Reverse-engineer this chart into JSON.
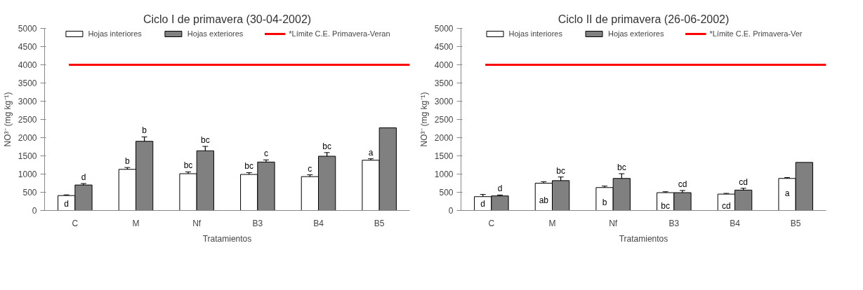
{
  "chart_data": [
    {
      "type": "bar",
      "title": "Ciclo I de primavera (30-04-2002)",
      "xlabel": "Tratamientos",
      "ylabel": "NO³⁻ (mg kg⁻¹)",
      "categories": [
        "C",
        "M",
        "Nf",
        "B3",
        "B4",
        "B5"
      ],
      "ylim": [
        0,
        5000
      ],
      "yticks": [
        0,
        500,
        1000,
        1500,
        2000,
        2500,
        3000,
        3500,
        4000,
        4500,
        5000
      ],
      "grid": false,
      "legend": "top",
      "series": [
        {
          "name": "Hojas interiores",
          "color": "#ffffff",
          "values": [
            410,
            1130,
            1010,
            990,
            930,
            1380
          ],
          "errors": [
            20,
            50,
            50,
            50,
            50,
            40
          ]
        },
        {
          "name": "Hojas exteriores",
          "color": "#808080",
          "values": [
            700,
            1900,
            1640,
            1330,
            1490,
            2270
          ],
          "errors": [
            40,
            120,
            120,
            60,
            100,
            null
          ]
        }
      ],
      "ref_lines": [
        {
          "axis": "y",
          "value": 4000,
          "label": "*Límite C.E. Primavera-Veran",
          "color": "#ff0000"
        }
      ],
      "annotations": [
        {
          "text": "d",
          "x": "C",
          "y": 180
        },
        {
          "text": "d",
          "x": "C",
          "y": 700
        },
        {
          "text": "b",
          "x": "M",
          "y": 1130
        },
        {
          "text": "b",
          "x": "M",
          "y": 1900
        },
        {
          "text": "bc",
          "x": "Nf",
          "y": 1010
        },
        {
          "text": "bc",
          "x": "Nf",
          "y": 1640
        },
        {
          "text": "bc",
          "x": "B3",
          "y": 990
        },
        {
          "text": "c",
          "x": "B3",
          "y": 1330
        },
        {
          "text": "c",
          "x": "B4",
          "y": 930
        },
        {
          "text": "bc",
          "x": "B4",
          "y": 1490
        },
        {
          "text": "a",
          "x": "B5",
          "y": 1380
        }
      ]
    },
    {
      "type": "bar",
      "title": "Ciclo II de primavera (26-06-2002)",
      "xlabel": "Tratamientos",
      "ylabel": "NO³⁻ (mg kg⁻¹)",
      "categories": [
        "C",
        "M",
        "Nf",
        "B3",
        "B4",
        "B5"
      ],
      "ylim": [
        0,
        5000
      ],
      "yticks": [
        0,
        500,
        1000,
        1500,
        2000,
        2500,
        3000,
        3500,
        4000,
        4500,
        5000
      ],
      "grid": false,
      "legend": "top",
      "series": [
        {
          "name": "Hojas interiores",
          "color": "#ffffff",
          "values": [
            380,
            750,
            630,
            490,
            450,
            880
          ],
          "errors": [
            60,
            40,
            40,
            25,
            20,
            25
          ]
        },
        {
          "name": "Hojas exteriores",
          "color": "#808080",
          "values": [
            400,
            820,
            880,
            490,
            560,
            1320
          ],
          "errors": [
            25,
            100,
            130,
            60,
            50,
            null
          ]
        }
      ],
      "ref_lines": [
        {
          "axis": "y",
          "value": 4000,
          "label": "*Límite C.E. Primavera-Ver",
          "color": "#ff0000"
        }
      ],
      "annotations": [
        {
          "text": "d",
          "x": "C",
          "y": 180
        },
        {
          "text": "d",
          "x": "C",
          "y": 400
        },
        {
          "text": "ab",
          "x": "M",
          "y": 280
        },
        {
          "text": "bc",
          "x": "M",
          "y": 820
        },
        {
          "text": "b",
          "x": "Nf",
          "y": 230
        },
        {
          "text": "bc",
          "x": "Nf",
          "y": 880
        },
        {
          "text": "bc",
          "x": "B3",
          "y": 130
        },
        {
          "text": "cd",
          "x": "B3",
          "y": 490
        },
        {
          "text": "cd",
          "x": "B4",
          "y": 130
        },
        {
          "text": "cd",
          "x": "B4",
          "y": 560
        },
        {
          "text": "a",
          "x": "B5",
          "y": 480
        }
      ]
    }
  ]
}
